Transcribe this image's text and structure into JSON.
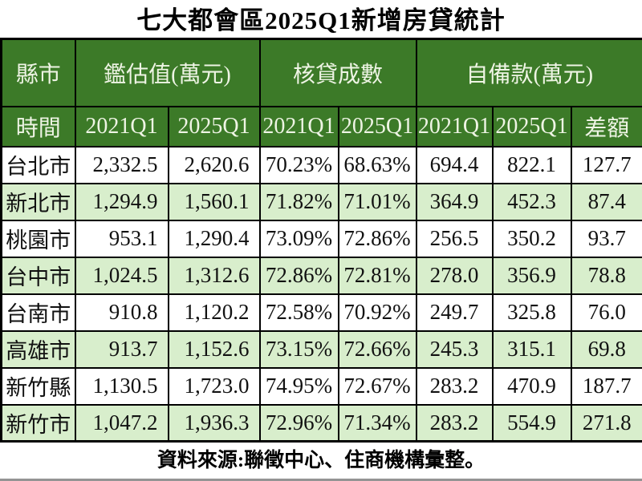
{
  "title": "七大都會區2025Q1新增房貸統計",
  "footer": {
    "source": "資料來源:聯徵中心、住商機構彙整。"
  },
  "colors": {
    "header_green": "#3c7a28",
    "alt_row_green": "#d8eecc",
    "header_text": "#eef4e4",
    "border": "#000000"
  },
  "table": {
    "group_headers": [
      {
        "label": "縣市",
        "colspan": 1
      },
      {
        "label": "鑑估值(萬元)",
        "colspan": 2
      },
      {
        "label": "核貸成數",
        "colspan": 2
      },
      {
        "label": "自備款(萬元)",
        "colspan": 3
      }
    ],
    "sub_headers": [
      "時間",
      "2021Q1",
      "2025Q1",
      "2021Q1",
      "2025Q1",
      "2021Q1",
      "2025Q1",
      "差額"
    ],
    "rows": [
      {
        "city": "台北市",
        "values": [
          "2,332.5",
          "2,620.6",
          "70.23%",
          "68.63%",
          "694.4",
          "822.1",
          "127.7"
        ]
      },
      {
        "city": "新北市",
        "values": [
          "1,294.9",
          "1,560.1",
          "71.82%",
          "71.01%",
          "364.9",
          "452.3",
          "87.4"
        ]
      },
      {
        "city": "桃園市",
        "values": [
          "953.1",
          "1,290.4",
          "73.09%",
          "72.86%",
          "256.5",
          "350.2",
          "93.7"
        ]
      },
      {
        "city": "台中市",
        "values": [
          "1,024.5",
          "1,312.6",
          "72.86%",
          "72.81%",
          "278.0",
          "356.9",
          "78.8"
        ]
      },
      {
        "city": "台南市",
        "values": [
          "910.8",
          "1,120.2",
          "72.58%",
          "70.92%",
          "249.7",
          "325.8",
          "76.0"
        ]
      },
      {
        "city": "高雄市",
        "values": [
          "913.7",
          "1,152.6",
          "73.15%",
          "72.66%",
          "245.3",
          "315.1",
          "69.8"
        ]
      },
      {
        "city": "新竹縣",
        "values": [
          "1,130.5",
          "1,723.0",
          "74.95%",
          "72.67%",
          "283.2",
          "470.9",
          "187.7"
        ]
      },
      {
        "city": "新竹市",
        "values": [
          "1,047.2",
          "1,936.3",
          "72.96%",
          "71.34%",
          "283.2",
          "554.9",
          "271.8"
        ]
      }
    ]
  },
  "chart_data": {
    "type": "table",
    "title": "七大都會區2025Q1新增房貸統計",
    "column_groups": [
      "縣市",
      "鑑估值(萬元)",
      "核貸成數",
      "自備款(萬元)"
    ],
    "columns": [
      "時間",
      "2021Q1 鑑估值",
      "2025Q1 鑑估值",
      "2021Q1 核貸成數",
      "2025Q1 核貸成數",
      "2021Q1 自備款",
      "2025Q1 自備款",
      "差額"
    ],
    "rows": [
      [
        "台北市",
        2332.5,
        2620.6,
        "70.23%",
        "68.63%",
        694.4,
        822.1,
        127.7
      ],
      [
        "新北市",
        1294.9,
        1560.1,
        "71.82%",
        "71.01%",
        364.9,
        452.3,
        87.4
      ],
      [
        "桃園市",
        953.1,
        1290.4,
        "73.09%",
        "72.86%",
        256.5,
        350.2,
        93.7
      ],
      [
        "台中市",
        1024.5,
        1312.6,
        "72.86%",
        "72.81%",
        278.0,
        356.9,
        78.8
      ],
      [
        "台南市",
        910.8,
        1120.2,
        "72.58%",
        "70.92%",
        249.7,
        325.8,
        76.0
      ],
      [
        "高雄市",
        913.7,
        1152.6,
        "73.15%",
        "72.66%",
        245.3,
        315.1,
        69.8
      ],
      [
        "新竹縣",
        1130.5,
        1723.0,
        "74.95%",
        "72.67%",
        283.2,
        470.9,
        187.7
      ],
      [
        "新竹市",
        1047.2,
        1936.3,
        "72.96%",
        "71.34%",
        283.2,
        554.9,
        271.8
      ]
    ],
    "footnote": "資料來源:聯徵中心、住商機構彙整。"
  }
}
